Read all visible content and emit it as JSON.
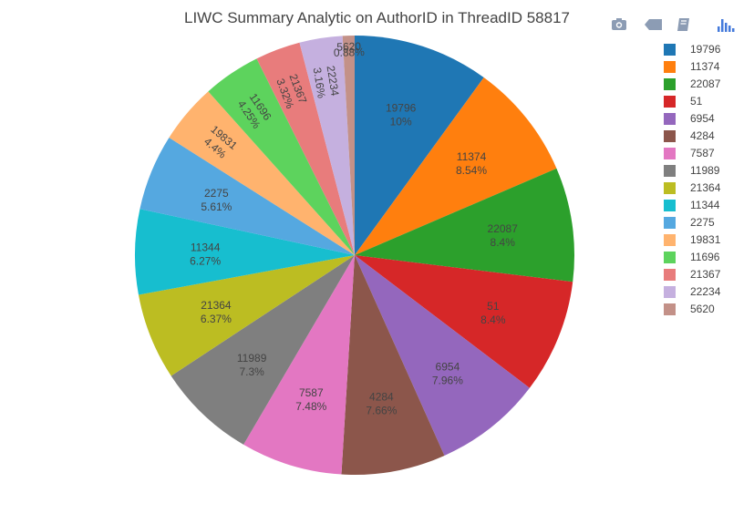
{
  "chart_data": {
    "type": "pie",
    "title": "LIWC Summary Analytic on AuthorID in ThreadID 58817",
    "slices": [
      {
        "label": "19796",
        "value": 10,
        "percent_text": "10%",
        "color": "#1f77b4"
      },
      {
        "label": "11374",
        "value": 8.54,
        "percent_text": "8.54%",
        "color": "#ff7f0e"
      },
      {
        "label": "22087",
        "value": 8.4,
        "percent_text": "8.4%",
        "color": "#2ca02c"
      },
      {
        "label": "51",
        "value": 8.4,
        "percent_text": "8.4%",
        "color": "#d62728"
      },
      {
        "label": "6954",
        "value": 7.96,
        "percent_text": "7.96%",
        "color": "#9467bd"
      },
      {
        "label": "4284",
        "value": 7.66,
        "percent_text": "7.66%",
        "color": "#8c564b"
      },
      {
        "label": "7587",
        "value": 7.48,
        "percent_text": "7.48%",
        "color": "#e377c2"
      },
      {
        "label": "11989",
        "value": 7.3,
        "percent_text": "7.3%",
        "color": "#7f7f7f"
      },
      {
        "label": "21364",
        "value": 6.37,
        "percent_text": "6.37%",
        "color": "#bcbd22"
      },
      {
        "label": "11344",
        "value": 6.27,
        "percent_text": "6.27%",
        "color": "#17becf"
      },
      {
        "label": "2275",
        "value": 5.61,
        "percent_text": "5.61%",
        "color": "#55a8e0"
      },
      {
        "label": "19831",
        "value": 4.4,
        "percent_text": "4.4%",
        "color": "#ffb36e"
      },
      {
        "label": "11696",
        "value": 4.25,
        "percent_text": "4.25%",
        "color": "#5dd35d"
      },
      {
        "label": "21367",
        "value": 3.32,
        "percent_text": "3.32%",
        "color": "#e87c7c"
      },
      {
        "label": "22234",
        "value": 3.16,
        "percent_text": "3.16%",
        "color": "#c5b0df"
      },
      {
        "label": "5620",
        "value": 0.88,
        "percent_text": "0.88%",
        "color": "#c39188"
      }
    ],
    "direction": "clockwise",
    "start": "top",
    "legend_position": "right"
  },
  "modebar": {
    "icons": [
      "camera-icon",
      "tag-icon",
      "book-icon",
      "plotly-logo-icon"
    ],
    "icon_color": "#8c9cb4"
  }
}
